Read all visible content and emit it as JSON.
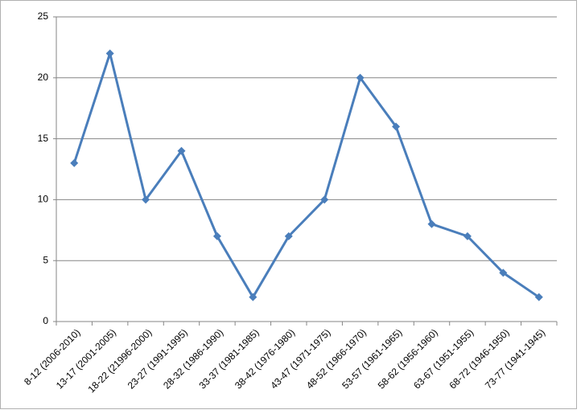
{
  "chart_data": {
    "type": "line",
    "categories": [
      "8-12 (2006-2010)",
      "13-17 (2001-2005)",
      "18-22 (21996-2000)",
      "23-27 (1991-1995)",
      "28-32 (1986-1990)",
      "33-37 (1981-1985)",
      "38-42 (1976-1980)",
      "43-47 (1971-1975)",
      "48-52 (1966-1970)",
      "53-57 (1961-1965)",
      "58-62 (1956-1960)",
      "63-67 (1951-1955)",
      "68-72 (1946-1950)",
      "73-77 (1941-1945)"
    ],
    "values": [
      13,
      22,
      10,
      14,
      7,
      2,
      7,
      10,
      20,
      16,
      8,
      7,
      4,
      2
    ],
    "color": "#4a7ebb",
    "ylim": [
      0,
      25
    ],
    "yticks": [
      0,
      5,
      10,
      15,
      20,
      25
    ],
    "grid": true
  }
}
